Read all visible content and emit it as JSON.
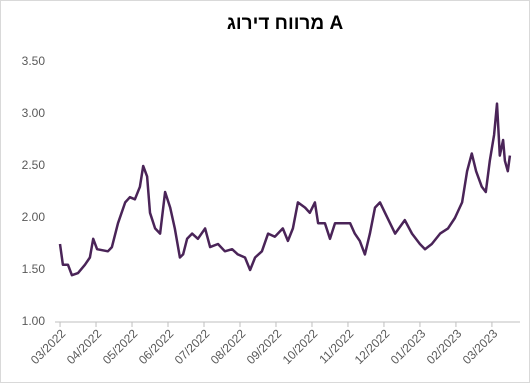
{
  "chart_data": {
    "type": "line",
    "title": "מרווח דירוג A",
    "color": "#4a2458",
    "grid": false,
    "xlim": [
      -0.14,
      12.78
    ],
    "ylim": [
      1.0,
      3.5
    ],
    "yticks": [
      {
        "value": 1.0,
        "label": "1.00"
      },
      {
        "value": 1.5,
        "label": "1.50"
      },
      {
        "value": 2.0,
        "label": "2.00"
      },
      {
        "value": 2.5,
        "label": "2.50"
      },
      {
        "value": 3.0,
        "label": "3.00"
      },
      {
        "value": 3.5,
        "label": "3.50"
      }
    ],
    "xticks": [
      {
        "value": 0,
        "label": "03/2022"
      },
      {
        "value": 1,
        "label": "04/2022"
      },
      {
        "value": 2,
        "label": "05/2022"
      },
      {
        "value": 3,
        "label": "06/2022"
      },
      {
        "value": 4,
        "label": "07/2022"
      },
      {
        "value": 5,
        "label": "08/2022"
      },
      {
        "value": 6,
        "label": "09/2022"
      },
      {
        "value": 7,
        "label": "10/2022"
      },
      {
        "value": 8,
        "label": "11/2022"
      },
      {
        "value": 9,
        "label": "12/2022"
      },
      {
        "value": 10,
        "label": "01/2023"
      },
      {
        "value": 11,
        "label": "02/2023"
      },
      {
        "value": 12,
        "label": "03/2023"
      }
    ],
    "x": [
      0,
      0.08,
      0.22,
      0.33,
      0.5,
      0.69,
      0.83,
      0.92,
      1.03,
      1.33,
      1.44,
      1.61,
      1.81,
      1.94,
      2.08,
      2.22,
      2.31,
      2.42,
      2.5,
      2.64,
      2.78,
      2.92,
      3.06,
      3.19,
      3.33,
      3.42,
      3.53,
      3.67,
      3.83,
      4.03,
      4.17,
      4.39,
      4.58,
      4.78,
      4.94,
      5.14,
      5.28,
      5.42,
      5.61,
      5.78,
      5.97,
      6.19,
      6.33,
      6.47,
      6.61,
      6.81,
      6.94,
      7.08,
      7.17,
      7.36,
      7.5,
      7.64,
      7.83,
      8.06,
      8.19,
      8.33,
      8.47,
      8.61,
      8.75,
      8.89,
      9.03,
      9.31,
      9.58,
      9.78,
      10,
      10.14,
      10.33,
      10.56,
      10.78,
      10.97,
      11.17,
      11.31,
      11.44,
      11.56,
      11.72,
      11.83,
      11.94,
      12.06,
      12.14,
      12.22,
      12.31,
      12.36,
      12.44,
      12.5
    ],
    "values": [
      1.75,
      1.55,
      1.55,
      1.45,
      1.47,
      1.55,
      1.62,
      1.8,
      1.7,
      1.68,
      1.72,
      1.95,
      2.15,
      2.2,
      2.18,
      2.3,
      2.5,
      2.4,
      2.05,
      1.9,
      1.85,
      2.25,
      2.1,
      1.9,
      1.62,
      1.65,
      1.8,
      1.85,
      1.8,
      1.9,
      1.72,
      1.75,
      1.68,
      1.7,
      1.65,
      1.62,
      1.5,
      1.62,
      1.68,
      1.85,
      1.82,
      1.9,
      1.78,
      1.9,
      2.15,
      2.1,
      2.05,
      2.15,
      1.95,
      1.95,
      1.8,
      1.95,
      1.95,
      1.95,
      1.85,
      1.78,
      1.65,
      1.85,
      2.1,
      2.15,
      2.05,
      1.85,
      1.98,
      1.85,
      1.75,
      1.7,
      1.75,
      1.85,
      1.9,
      2.0,
      2.15,
      2.45,
      2.62,
      2.45,
      2.3,
      2.25,
      2.55,
      2.8,
      3.1,
      2.6,
      2.75,
      2.55,
      2.45,
      2.6
    ]
  }
}
